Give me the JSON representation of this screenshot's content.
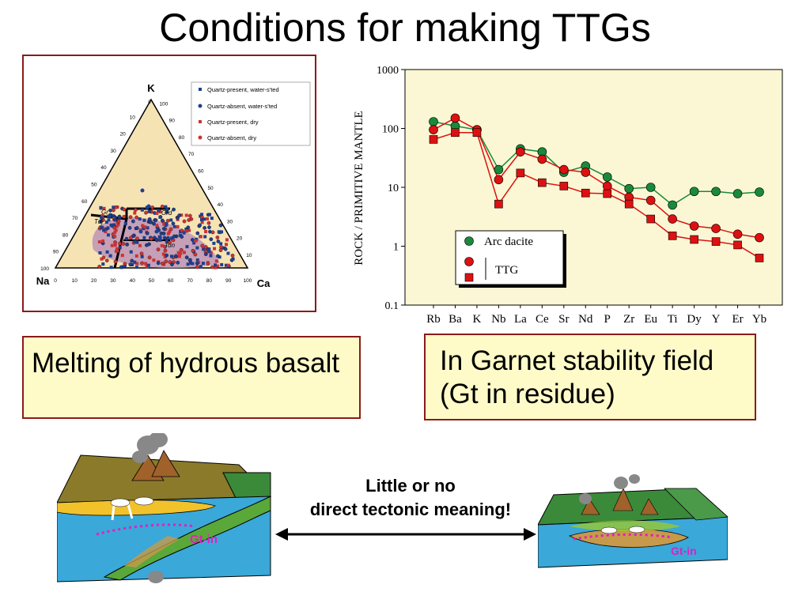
{
  "slide": {
    "title": "Conditions for making TTGs"
  },
  "ternary": {
    "apex_top": "K",
    "apex_left": "Na",
    "apex_right": "Ca",
    "left_edge_ticks": [
      "10",
      "20",
      "30",
      "40",
      "50",
      "60",
      "70",
      "80",
      "90",
      "100"
    ],
    "right_edge_ticks": [
      "100",
      "90",
      "80",
      "70",
      "60",
      "50",
      "40",
      "30",
      "20",
      "10"
    ],
    "bottom_ticks": [
      "0",
      "10",
      "20",
      "30",
      "40",
      "50",
      "60",
      "70",
      "80",
      "90",
      "100"
    ],
    "top_zero": "0",
    "field_labels": [
      "Gr",
      "Tdj",
      "Grd",
      "Ton"
    ],
    "legend": [
      {
        "label": "Quartz-present, water-s'ted",
        "color": "#1f3f8f",
        "marker": "square"
      },
      {
        "label": "Quartz-absent, water-s'ted",
        "color": "#1f3f8f",
        "marker": "circle"
      },
      {
        "label": "Quartz-present, dry",
        "color": "#cc3333",
        "marker": "square"
      },
      {
        "label": "Quartz-absent, dry",
        "color": "#cc3333",
        "marker": "circle"
      }
    ]
  },
  "chart_data": {
    "type": "line",
    "ylabel": "ROCK / PRIMITIVE MANTLE",
    "yscale": "log",
    "ylim": [
      0.1,
      1000
    ],
    "yticks": [
      "1000",
      "100",
      "10",
      "1",
      "0.1"
    ],
    "categories": [
      "Rb",
      "Ba",
      "K",
      "Nb",
      "La",
      "Ce",
      "Sr",
      "Nd",
      "P",
      "Zr",
      "Eu",
      "Ti",
      "Dy",
      "Y",
      "Er",
      "Yb"
    ],
    "series": [
      {
        "name": "Arc dacite",
        "marker": "circle",
        "color": "#1a8a3a",
        "values": [
          130,
          110,
          95,
          20,
          45,
          40,
          18,
          23,
          15,
          9.5,
          10,
          5,
          8.5,
          8.5,
          7.8,
          8.3
        ]
      },
      {
        "name": "TTG",
        "marker": "circle",
        "color": "#dd1111",
        "values": [
          95,
          150,
          95,
          13.5,
          40,
          30,
          20,
          18,
          10.5,
          6.8,
          6,
          2.9,
          2.2,
          2.0,
          1.6,
          1.4
        ]
      },
      {
        "name": "",
        "marker": "square",
        "color": "#dd1111",
        "values": [
          65,
          85,
          85,
          5.2,
          17.5,
          12,
          10.5,
          8,
          7.8,
          5.2,
          2.9,
          1.5,
          1.3,
          1.2,
          1.05,
          0.63
        ]
      }
    ],
    "legend_labels": [
      "Arc dacite",
      "TTG"
    ],
    "grid": false
  },
  "boxes": {
    "left_text": "Melting of hydrous basalt",
    "right_text": "In Garnet stability field (Gt in residue)"
  },
  "diagrams": {
    "caption_line1": "Little or no",
    "caption_line2": "direct tectonic meaning!",
    "left_label": "Gt-in",
    "right_label": "Gt-in"
  }
}
